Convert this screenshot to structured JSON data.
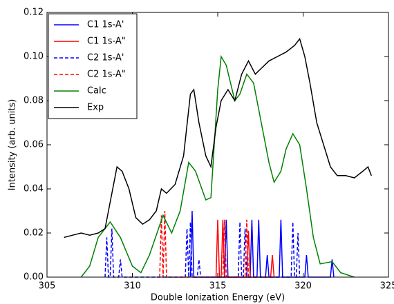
{
  "chart_data": {
    "type": "line",
    "xlabel": "Double Ionization Energy (eV)",
    "ylabel": "Intensity (arb. units)",
    "xlim": [
      305,
      325
    ],
    "xticks": [
      305,
      310,
      315,
      320,
      325
    ],
    "ylim": [
      0,
      0.12
    ],
    "yticks": [
      {
        "value": 0,
        "label": "0.00"
      },
      {
        "value": 0.02,
        "label": "0.02"
      },
      {
        "value": 0.04,
        "label": "0.04"
      },
      {
        "value": 0.06,
        "label": "0.06"
      },
      {
        "value": 0.08,
        "label": "0.08"
      },
      {
        "value": 0.1,
        "label": "0.10"
      },
      {
        "value": 0.12,
        "label": "0.12"
      }
    ],
    "legend": "upper left",
    "series": [
      {
        "name": "C1 1s-A'",
        "color": "#0000ff",
        "dashed": false,
        "x": [
          313.4,
          313.5,
          313.6,
          315.4,
          315.5,
          315.6,
          316.9,
          317.0,
          317.1,
          317.3,
          317.4,
          317.5,
          317.8,
          317.9,
          318.0,
          318.6,
          318.7,
          318.8,
          320.1,
          320.2,
          320.3,
          321.6,
          321.7,
          321.8
        ],
        "values": [
          0,
          0.03,
          0,
          0,
          0.026,
          0,
          0,
          0.026,
          0,
          0,
          0.026,
          0,
          0,
          0.01,
          0,
          0,
          0.026,
          0,
          0,
          0.01,
          0,
          0,
          0.008,
          0
        ]
      },
      {
        "name": "C1 1s-A\"",
        "color": "#ff0000",
        "dashed": false,
        "x": [
          314.9,
          315.0,
          315.1,
          315.2,
          315.3,
          315.4,
          316.7,
          316.8,
          316.9,
          318.1,
          318.2,
          318.3
        ],
        "values": [
          0,
          0.026,
          0,
          0,
          0.026,
          0,
          0,
          0.021,
          0,
          0,
          0.01,
          0
        ]
      },
      {
        "name": "C2 1s-A'",
        "color": "#0000ff",
        "dashed": true,
        "x": [
          308.4,
          308.5,
          308.6,
          308.7,
          308.8,
          308.9,
          309.2,
          309.3,
          309.4,
          313.1,
          313.2,
          313.3,
          313.3,
          313.4,
          313.5,
          313.8,
          313.9,
          314.0,
          316.2,
          316.3,
          316.4,
          316.5,
          316.6,
          316.7,
          319.3,
          319.4,
          319.5,
          319.6,
          319.7,
          319.8
        ],
        "values": [
          0,
          0.018,
          0,
          0,
          0.022,
          0,
          0,
          0.008,
          0,
          0,
          0.022,
          0,
          0,
          0.025,
          0,
          0,
          0.008,
          0,
          0,
          0.025,
          0,
          0,
          0.022,
          0,
          0,
          0.025,
          0,
          0,
          0.02,
          0
        ]
      },
      {
        "name": "C2 1s-A\"",
        "color": "#ff0000",
        "dashed": true,
        "x": [
          311.6,
          311.7,
          311.8,
          311.8,
          311.9,
          312.0,
          315.3,
          315.4,
          315.5,
          316.6,
          316.7,
          316.8
        ],
        "values": [
          0,
          0.028,
          0,
          0,
          0.03,
          0,
          0,
          0.026,
          0,
          0,
          0.026,
          0
        ]
      },
      {
        "name": "Calc",
        "color": "#008000",
        "dashed": false,
        "x": [
          307,
          307.5,
          308,
          308.7,
          309.3,
          310,
          310.5,
          311,
          311.8,
          312.3,
          312.8,
          313.3,
          313.7,
          314.3,
          314.6,
          315,
          315.2,
          315.5,
          316,
          316.3,
          316.7,
          317.1,
          317.5,
          318,
          318.3,
          318.7,
          319,
          319.4,
          319.8,
          320.2,
          320.6,
          321,
          321.7,
          322.2,
          323
        ],
        "values": [
          0,
          0.005,
          0.018,
          0.025,
          0.018,
          0.005,
          0.002,
          0.01,
          0.028,
          0.02,
          0.03,
          0.052,
          0.048,
          0.035,
          0.036,
          0.085,
          0.1,
          0.096,
          0.08,
          0.083,
          0.092,
          0.088,
          0.072,
          0.052,
          0.043,
          0.048,
          0.058,
          0.065,
          0.06,
          0.04,
          0.018,
          0.006,
          0.007,
          0.002,
          0
        ]
      },
      {
        "name": "Exp",
        "color": "#000000",
        "dashed": false,
        "x": [
          306,
          306.5,
          307,
          307.5,
          308,
          308.4,
          308.8,
          309.1,
          309.4,
          309.8,
          310.2,
          310.6,
          311,
          311.4,
          311.7,
          312,
          312.5,
          313,
          313.4,
          313.6,
          313.9,
          314.3,
          314.6,
          314.9,
          315.2,
          315.6,
          316,
          316.4,
          316.8,
          317.2,
          317.6,
          318,
          318.5,
          319,
          319.5,
          319.8,
          320.1,
          320.4,
          320.8,
          321.2,
          321.6,
          322,
          322.5,
          323,
          323.5,
          323.8,
          324
        ],
        "values": [
          0.018,
          0.019,
          0.02,
          0.019,
          0.02,
          0.022,
          0.038,
          0.05,
          0.048,
          0.04,
          0.027,
          0.024,
          0.026,
          0.03,
          0.04,
          0.038,
          0.042,
          0.055,
          0.083,
          0.085,
          0.07,
          0.055,
          0.05,
          0.068,
          0.08,
          0.085,
          0.08,
          0.092,
          0.098,
          0.092,
          0.095,
          0.098,
          0.1,
          0.102,
          0.105,
          0.108,
          0.1,
          0.088,
          0.07,
          0.06,
          0.05,
          0.046,
          0.046,
          0.045,
          0.048,
          0.05,
          0.046
        ]
      }
    ]
  }
}
